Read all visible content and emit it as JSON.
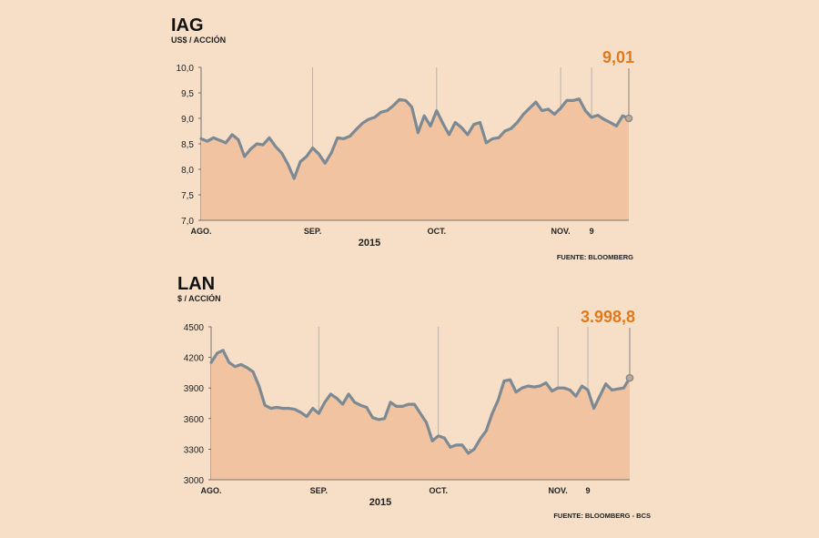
{
  "colors": {
    "background": "#f7dfc7",
    "area": "#f2c3a1",
    "line": "#7d8a93",
    "highlight": "#e07a1f",
    "grid": "#a9a9a9"
  },
  "chart_data": [
    {
      "type": "area",
      "title": "IAG",
      "subtitle": "US$ / ACCIÓN",
      "ylim": [
        7.0,
        10.0
      ],
      "yticks": [
        "10,0",
        "9,5",
        "9,0",
        "8,5",
        "8,0",
        "7,5",
        "7,0"
      ],
      "ytick_values": [
        10.0,
        9.5,
        9.0,
        8.5,
        8.0,
        7.5,
        7.0
      ],
      "x_labels": [
        "AGO.",
        "SEP.",
        "OCT.",
        "NOV.",
        "9"
      ],
      "x_label_index": [
        0,
        18,
        38,
        58,
        63
      ],
      "year_label": "2015",
      "last_value_label": "9,01",
      "source": "FUENTE: BLOOMBERG",
      "reference_line": null,
      "values": [
        8.6,
        8.55,
        8.62,
        8.57,
        8.52,
        8.68,
        8.58,
        8.25,
        8.4,
        8.5,
        8.48,
        8.62,
        8.45,
        8.32,
        8.1,
        7.82,
        8.15,
        8.25,
        8.42,
        8.3,
        8.12,
        8.32,
        8.62,
        8.6,
        8.65,
        8.78,
        8.9,
        8.98,
        9.02,
        9.12,
        9.15,
        9.25,
        9.37,
        9.35,
        9.22,
        8.72,
        9.05,
        8.85,
        9.15,
        8.9,
        8.68,
        8.92,
        8.82,
        8.68,
        8.88,
        8.92,
        8.52,
        8.6,
        8.62,
        8.75,
        8.8,
        8.92,
        9.08,
        9.2,
        9.32,
        9.15,
        9.18,
        9.08,
        9.2,
        9.35,
        9.35,
        9.38,
        9.15,
        9.02,
        9.06,
        8.98,
        8.92,
        8.85,
        9.05,
        9.0
      ]
    },
    {
      "type": "area",
      "title": "LAN",
      "subtitle": "$ / ACCIÓN",
      "ylim": [
        3000,
        4500
      ],
      "yticks": [
        "4500",
        "4200",
        "3900",
        "3600",
        "3300",
        "3000"
      ],
      "ytick_values": [
        4500,
        4200,
        3900,
        3600,
        3300,
        3000
      ],
      "x_labels": [
        "AGO.",
        "SEP.",
        "OCT.",
        "NOV.",
        "9"
      ],
      "x_label_index": [
        0,
        18,
        38,
        58,
        63
      ],
      "year_label": "2015",
      "last_value_label": "3.998,8",
      "source": "FUENTE: BLOOMBERG - BCS",
      "reference_line": 3300,
      "values": [
        4150,
        4240,
        4270,
        4150,
        4110,
        4130,
        4100,
        4060,
        3920,
        3730,
        3700,
        3710,
        3700,
        3700,
        3690,
        3660,
        3620,
        3700,
        3650,
        3760,
        3840,
        3800,
        3740,
        3840,
        3760,
        3730,
        3710,
        3610,
        3590,
        3600,
        3760,
        3720,
        3720,
        3740,
        3740,
        3650,
        3560,
        3380,
        3430,
        3410,
        3320,
        3340,
        3340,
        3260,
        3300,
        3400,
        3480,
        3650,
        3780,
        3970,
        3980,
        3860,
        3900,
        3920,
        3910,
        3920,
        3950,
        3870,
        3900,
        3900,
        3880,
        3820,
        3920,
        3880,
        3700,
        3820,
        3940,
        3880,
        3890,
        3900,
        3998.8
      ]
    }
  ]
}
